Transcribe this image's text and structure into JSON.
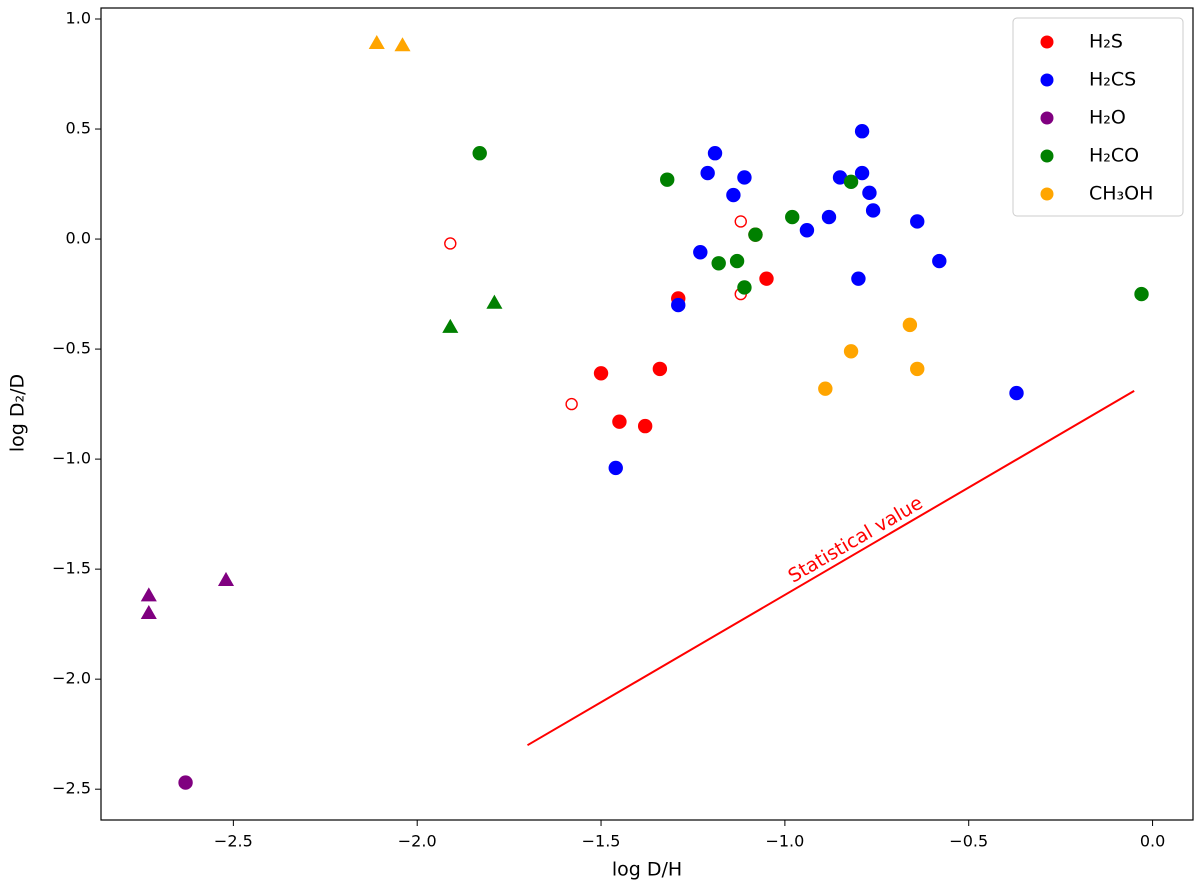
{
  "chart_data": {
    "type": "scatter",
    "x_label": "log D/H",
    "y_label": "log D₂/D",
    "xlim": [
      -2.86,
      0.11
    ],
    "ylim": [
      -2.64,
      1.05
    ],
    "xticks": [
      {
        "value": -2.5,
        "label": "−2.5"
      },
      {
        "value": -2.0,
        "label": "−2.0"
      },
      {
        "value": -1.5,
        "label": "−1.5"
      },
      {
        "value": -1.0,
        "label": "−1.0"
      },
      {
        "value": -0.5,
        "label": "−0.5"
      },
      {
        "value": 0.0,
        "label": "0.0"
      }
    ],
    "yticks": [
      {
        "value": 1.0,
        "label": "1.0"
      },
      0.5,
      {
        "value": 0.0,
        "label": "0.0"
      },
      {
        "value": -0.5,
        "label": "−0.5"
      },
      {
        "value": -1.0,
        "label": "−1.0"
      },
      {
        "value": -1.5,
        "label": "−1.5"
      },
      {
        "value": -2.0,
        "label": "−2.0"
      },
      {
        "value": -2.5,
        "label": "−2.5"
      }
    ],
    "legend": "upper right",
    "series": [
      {
        "name": "H₂S",
        "color": "#ff0000",
        "groups": [
          {
            "marker": "circle",
            "filled": true,
            "x": [
              -1.5,
              -1.45,
              -1.38,
              -1.34,
              -1.29,
              -1.05,
              -1.08
            ],
            "y": [
              -0.61,
              -0.83,
              -0.85,
              -0.59,
              -0.27,
              -0.18,
              0.02
            ]
          },
          {
            "marker": "circle",
            "filled": false,
            "x": [
              -1.91,
              -1.58,
              -1.12,
              -1.12
            ],
            "y": [
              -0.02,
              -0.75,
              0.08,
              -0.25
            ]
          }
        ]
      },
      {
        "name": "H₂CS",
        "color": "#0000ff",
        "groups": [
          {
            "marker": "circle",
            "filled": true,
            "x": [
              -1.46,
              -1.29,
              -1.23,
              -1.21,
              -1.19,
              -1.14,
              -1.11,
              -0.94,
              -0.88,
              -0.85,
              -0.8,
              -0.79,
              -0.79,
              -0.77,
              -0.76,
              -0.64,
              -0.58,
              -0.37
            ],
            "y": [
              -1.04,
              -0.3,
              -0.06,
              0.3,
              0.39,
              0.2,
              0.28,
              0.04,
              0.1,
              0.28,
              -0.18,
              0.49,
              0.3,
              0.21,
              0.13,
              0.08,
              -0.1,
              -0.7
            ]
          }
        ]
      },
      {
        "name": "H₂O",
        "color": "#800080",
        "groups": [
          {
            "marker": "circle",
            "filled": true,
            "x": [
              -2.63
            ],
            "y": [
              -2.47
            ]
          },
          {
            "marker": "triangle",
            "filled": true,
            "x": [
              -2.73,
              -2.73,
              -2.52
            ],
            "y": [
              -1.62,
              -1.7,
              -1.55
            ]
          }
        ]
      },
      {
        "name": "H₂CO",
        "color": "#008000",
        "groups": [
          {
            "marker": "circle",
            "filled": true,
            "x": [
              -1.83,
              -1.32,
              -1.18,
              -1.13,
              -1.11,
              -1.08,
              -0.98,
              -0.82,
              -0.03
            ],
            "y": [
              0.39,
              0.27,
              -0.11,
              -0.1,
              -0.22,
              0.02,
              0.1,
              0.26,
              -0.25
            ]
          },
          {
            "marker": "triangle",
            "filled": true,
            "x": [
              -1.91,
              -1.79
            ],
            "y": [
              -0.4,
              -0.29
            ]
          }
        ]
      },
      {
        "name": "CH₃OH",
        "color": "#ffa500",
        "groups": [
          {
            "marker": "circle",
            "filled": true,
            "x": [
              -0.89,
              -0.82,
              -0.66,
              -0.64
            ],
            "y": [
              -0.68,
              -0.51,
              -0.39,
              -0.59
            ]
          },
          {
            "marker": "triangle",
            "filled": true,
            "x": [
              -2.11,
              -2.04
            ],
            "y": [
              0.89,
              0.88
            ]
          }
        ]
      }
    ],
    "line": {
      "label": "Statistical value",
      "color": "#ff0000",
      "x": [
        -1.7,
        -0.05
      ],
      "y": [
        -2.3,
        -0.69
      ]
    }
  }
}
